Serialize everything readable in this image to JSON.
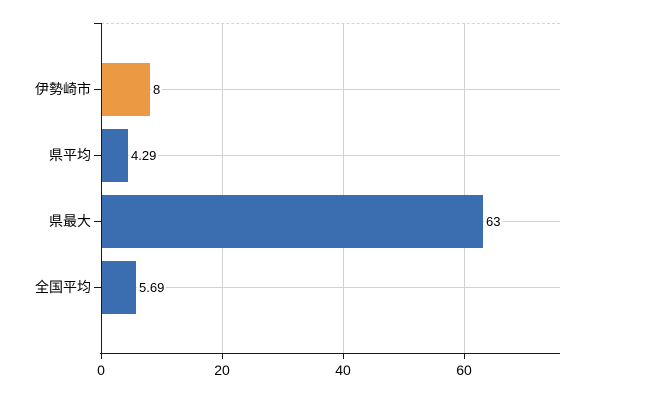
{
  "chart_data": {
    "type": "bar",
    "orientation": "horizontal",
    "title": "",
    "xlabel": "",
    "ylabel": "",
    "categories": [
      "伊勢崎市",
      "県平均",
      "県最大",
      "全国平均"
    ],
    "values": [
      8,
      4.29,
      63,
      5.69
    ],
    "value_labels": [
      "8",
      "4.29",
      "63",
      "5.69"
    ],
    "bar_colors": [
      "#eb9a43",
      "#3b6eb0",
      "#3b6eb0",
      "#3b6eb0"
    ],
    "x_ticks": [
      0,
      20,
      40,
      60
    ],
    "x_tick_labels": [
      "0",
      "20",
      "40",
      "60"
    ],
    "xlim": [
      0,
      75.8
    ],
    "grid": true,
    "legend_position": "none",
    "colors": {
      "bar_blue": "#3b6eb0",
      "bar_orange": "#eb9a43",
      "gridline": "#d2d2d2",
      "top_border": "#d6d6d6",
      "axis": "#1a1a1a",
      "text": "#000000",
      "background": "#ffffff"
    }
  }
}
